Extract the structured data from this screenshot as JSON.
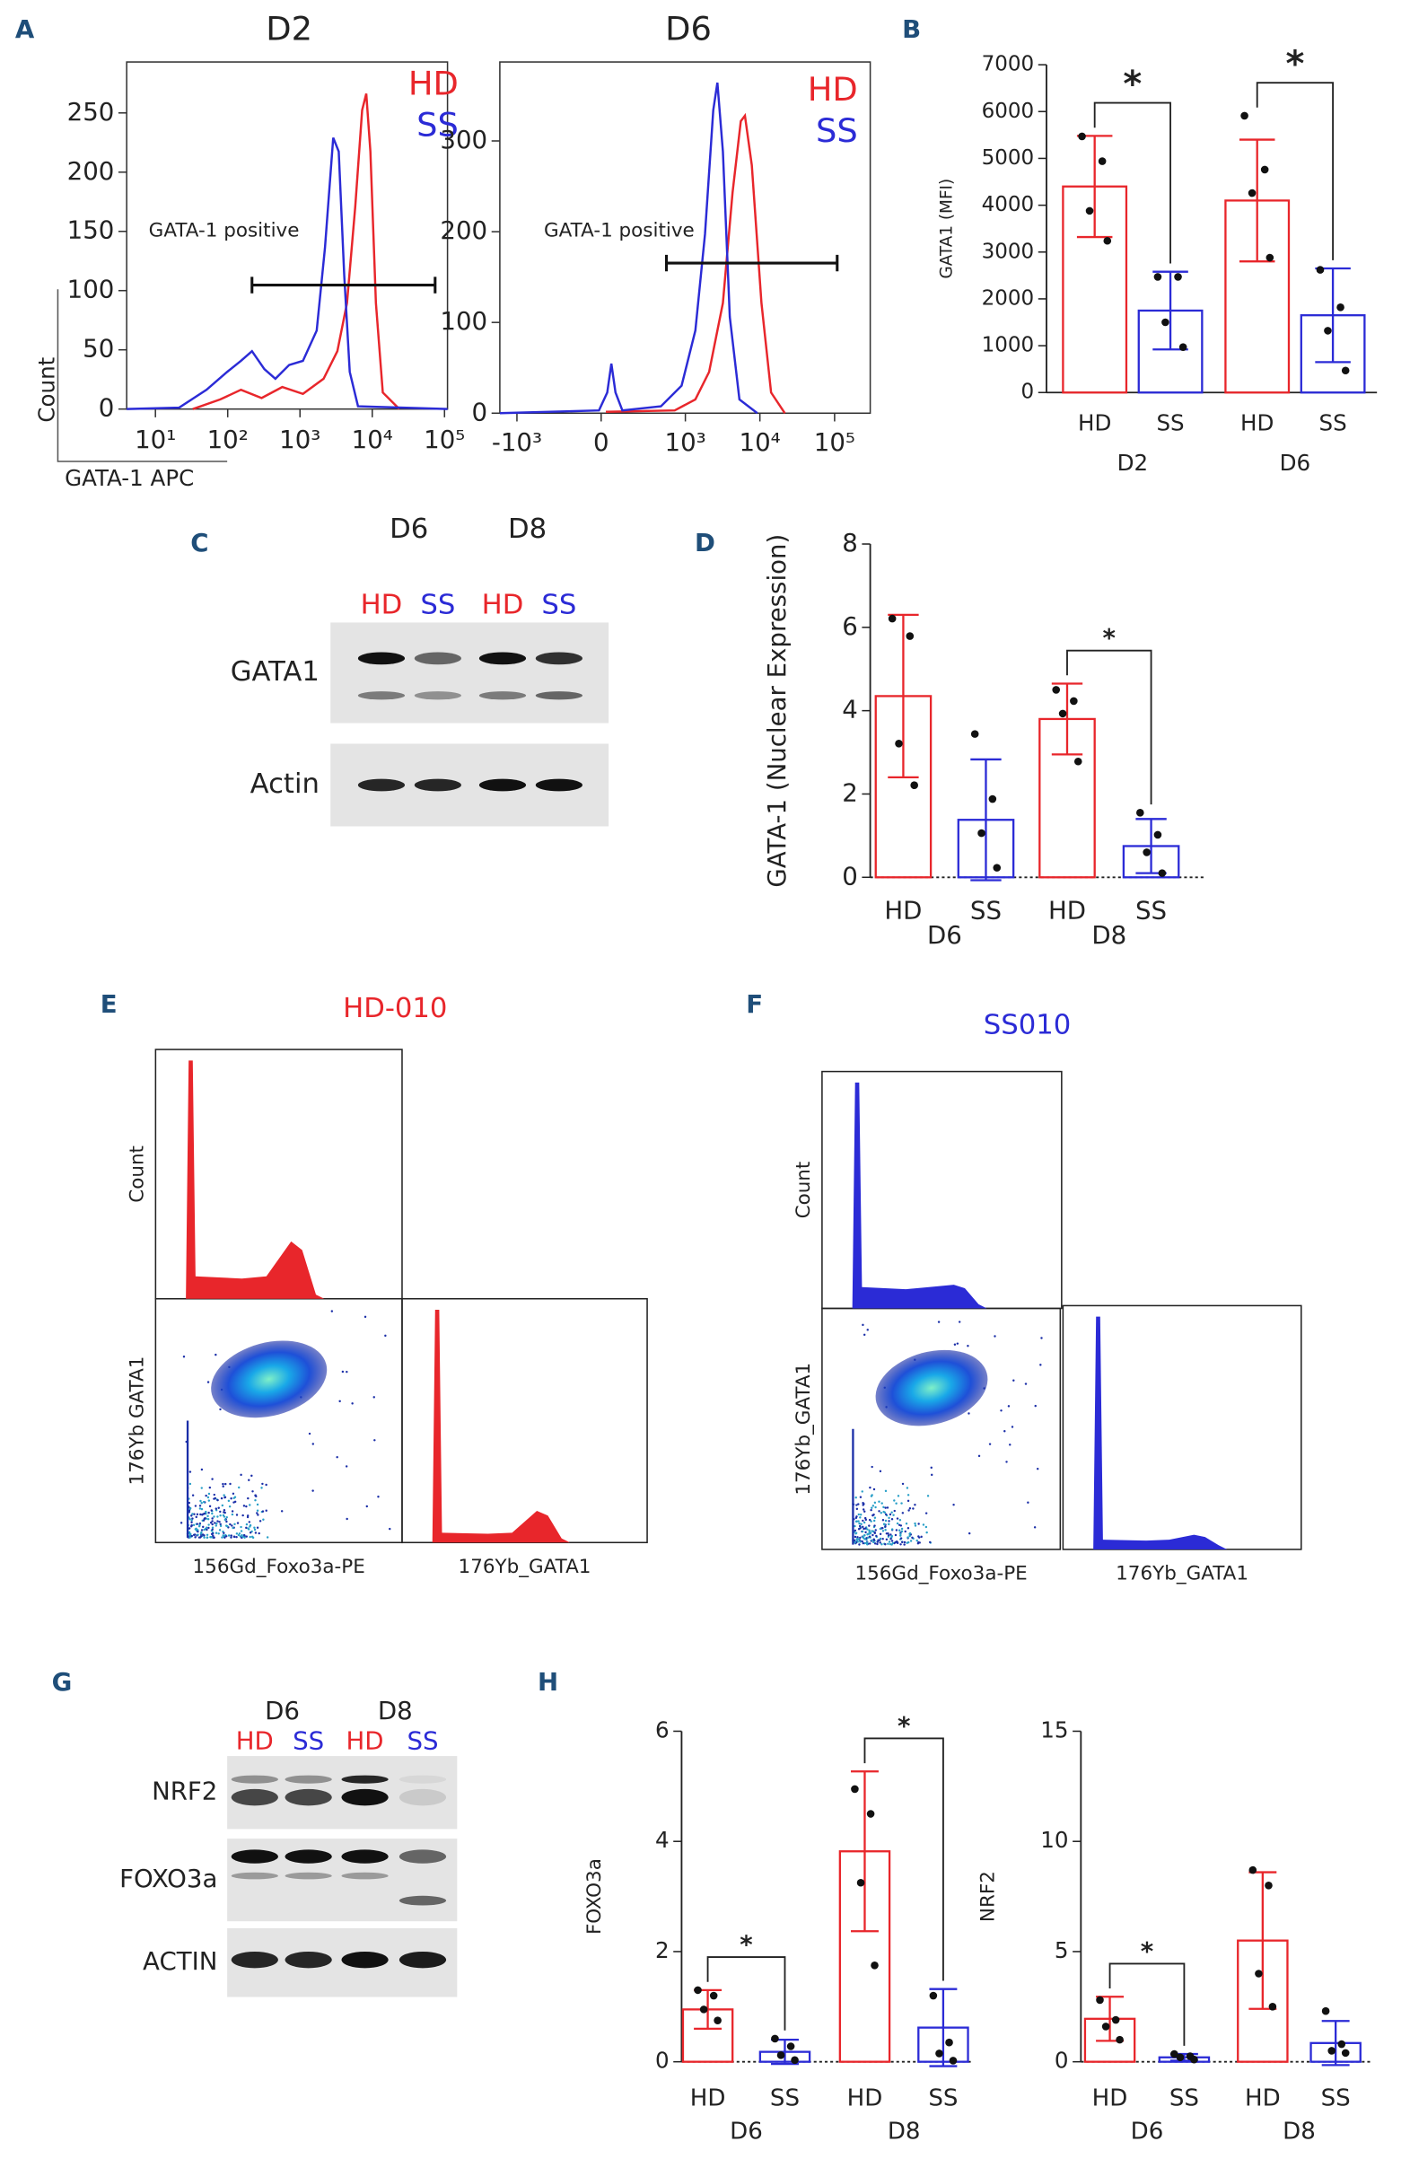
{
  "panel_labels": [
    "A",
    "B",
    "C",
    "D",
    "E",
    "F",
    "G",
    "H"
  ],
  "chart_data": [
    {
      "type": "flow-histogram",
      "title": "D2",
      "xlabel": "GATA-1 APC",
      "ylabel": "Count",
      "gate_label": "GATA-1 positive",
      "series": [
        {
          "name": "HD",
          "color": "#e8262b"
        },
        {
          "name": "SS",
          "color": "#2b2bd6"
        }
      ],
      "xscale": "log",
      "xlim": [
        4,
        110000
      ],
      "xticks": [
        {
          "value": 10,
          "label": "10¹"
        },
        {
          "value": 100,
          "label": "10²"
        },
        {
          "value": 1000,
          "label": "10³"
        },
        {
          "value": 10000,
          "label": "10⁴"
        },
        {
          "value": 100000,
          "label": "10⁵"
        }
      ],
      "ylim": [
        0,
        293
      ],
      "yticks": [
        0,
        50,
        100,
        150,
        200,
        250
      ]
    },
    {
      "type": "flow-histogram",
      "title": "D6",
      "gate_label": "GATA-1 positive",
      "series": [
        {
          "name": "HD",
          "color": "#e8262b"
        },
        {
          "name": "SS",
          "color": "#2b2bd6"
        }
      ],
      "xscale": "biexponential",
      "xlim": [
        -1700,
        300000
      ],
      "xticks": [
        {
          "value": -1000,
          "label": "-10³"
        },
        0,
        {
          "value": 1000,
          "label": "10³"
        },
        {
          "value": 10000,
          "label": "10⁴"
        },
        {
          "value": 100000,
          "label": "10⁵"
        }
      ],
      "ylim": [
        0,
        387
      ],
      "yticks": [
        0,
        100,
        200,
        300
      ]
    },
    {
      "type": "bar",
      "ylabel": "GATA1 (MFI)",
      "categories": [
        "HD",
        "SS",
        "HD",
        "SS"
      ],
      "group_labels": [
        "D2",
        "D6"
      ],
      "colors": [
        "#e8262b",
        "#2b2bd6",
        "#e8262b",
        "#2b2bd6"
      ],
      "values": [
        4400,
        1750,
        4100,
        1650
      ],
      "errors": [
        1080,
        830,
        1300,
        1000
      ],
      "points": [
        [
          5470,
          4940,
          3880,
          3240
        ],
        [
          2470,
          2470,
          1500,
          970
        ],
        [
          5910,
          4760,
          4260,
          2880
        ],
        [
          2620,
          1820,
          1320,
          470
        ]
      ],
      "ylim": [
        0,
        7000
      ],
      "yticks": [
        0,
        1000,
        2000,
        3000,
        4000,
        5000,
        6000,
        7000
      ],
      "baseline": "solid",
      "brackets": [
        {
          "pair": [
            0,
            1
          ],
          "label": "*"
        },
        {
          "pair": [
            2,
            3
          ],
          "label": "*"
        }
      ]
    },
    {
      "type": "bar",
      "ylabel": "GATA-1 (Nuclear Expression)",
      "categories": [
        "HD",
        "SS",
        "HD",
        "SS"
      ],
      "group_labels": [
        "D6",
        "D8"
      ],
      "colors": [
        "#e8262b",
        "#2b2bd6",
        "#e8262b",
        "#2b2bd6"
      ],
      "values": [
        4.35,
        1.38,
        3.8,
        0.75
      ],
      "errors": [
        1.95,
        1.45,
        0.85,
        0.65
      ],
      "points": [
        [
          6.21,
          5.79,
          3.21,
          2.21
        ],
        [
          3.44,
          1.88,
          1.06,
          0.23
        ],
        [
          4.5,
          4.23,
          3.93,
          2.78
        ],
        [
          1.55,
          1.02,
          0.6,
          0.1
        ]
      ],
      "ylim": [
        0,
        8
      ],
      "yticks": [
        0,
        2,
        4,
        6,
        8
      ],
      "baseline": "dotted",
      "brackets": [
        {
          "pair": [
            2,
            3
          ],
          "label": "*"
        }
      ]
    },
    {
      "type": "bar",
      "ylabel": "FOXO3a",
      "categories": [
        "HD",
        "SS",
        "HD",
        "SS"
      ],
      "group_labels": [
        "D6",
        "D8"
      ],
      "colors": [
        "#e8262b",
        "#2b2bd6",
        "#e8262b",
        "#2b2bd6"
      ],
      "values": [
        0.95,
        0.18,
        3.82,
        0.62
      ],
      "errors": [
        0.35,
        0.22,
        1.45,
        0.7
      ],
      "points": [
        [
          1.3,
          1.2,
          0.95,
          0.75
        ],
        [
          0.42,
          0.28,
          0.12,
          0.03
        ],
        [
          4.95,
          4.5,
          3.25,
          1.75
        ],
        [
          1.2,
          0.35,
          0.15,
          0.02
        ]
      ],
      "ylim": [
        0,
        6
      ],
      "yticks": [
        0,
        2,
        4,
        6
      ],
      "baseline": "dotted",
      "brackets": [
        {
          "pair": [
            0,
            1
          ],
          "label": "*"
        },
        {
          "pair": [
            2,
            3
          ],
          "label": "*"
        }
      ]
    },
    {
      "type": "bar",
      "ylabel": "NRF2",
      "categories": [
        "HD",
        "SS",
        "HD",
        "SS"
      ],
      "group_labels": [
        "D6",
        "D8"
      ],
      "colors": [
        "#e8262b",
        "#2b2bd6",
        "#e8262b",
        "#2b2bd6"
      ],
      "values": [
        1.95,
        0.2,
        5.5,
        0.85
      ],
      "errors": [
        1.0,
        0.15,
        3.1,
        1.0
      ],
      "points": [
        [
          2.8,
          1.9,
          1.6,
          1.0
        ],
        [
          0.35,
          0.25,
          0.2,
          0.1
        ],
        [
          8.7,
          8.0,
          4.0,
          2.5
        ],
        [
          2.3,
          0.8,
          0.5,
          0.4
        ]
      ],
      "ylim": [
        0,
        15
      ],
      "yticks": [
        0,
        5,
        10,
        15
      ],
      "baseline": "dotted",
      "brackets": [
        {
          "pair": [
            0,
            1
          ],
          "label": "*"
        }
      ]
    }
  ],
  "blots": [
    {
      "lanes_top": [
        "D6",
        "D8"
      ],
      "lanes": [
        "HD",
        "SS",
        "HD",
        "SS"
      ],
      "lane_colors": [
        "#e8262b",
        "#2b2bd6",
        "#e8262b",
        "#2b2bd6"
      ],
      "rows": [
        "GATA1",
        "Actin"
      ]
    },
    {
      "lanes_top": [
        "D6",
        "D8"
      ],
      "lanes": [
        "HD",
        "SS",
        "HD",
        "SS"
      ],
      "lane_colors": [
        "#e8262b",
        "#2b2bd6",
        "#e8262b",
        "#2b2bd6"
      ],
      "rows": [
        "NRF2",
        "FOXO3a",
        "ACTIN"
      ]
    }
  ],
  "mass_cytometry": [
    {
      "title": "HD-010",
      "color": "#e8262b",
      "count_label": "Count",
      "scatter_y_label": "176Yb  GATA1",
      "scatter_x_label": "156Gd_Foxo3a-PE",
      "hist_x_label": "176Yb_GATA1"
    },
    {
      "title": "SS010",
      "color": "#2b2bd6",
      "count_label": "Count",
      "scatter_y_label": "176Yb_GATA1",
      "scatter_x_label": "156Gd_Foxo3a-PE",
      "hist_x_label": "176Yb_GATA1"
    }
  ]
}
